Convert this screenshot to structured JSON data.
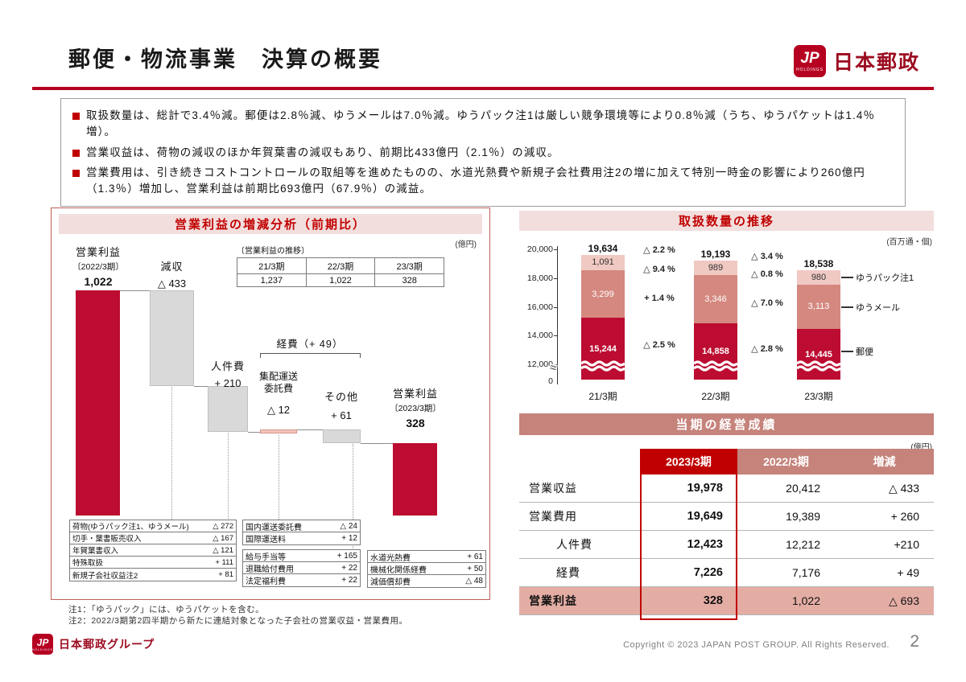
{
  "page": {
    "title": "郵便・物流事業　決算の概要",
    "page_number": "2",
    "copyright": "Copyright © 2023 JAPAN POST GROUP. All Rights Reserved."
  },
  "logo": {
    "jp": "JP",
    "holdings": "HOLDINGS",
    "company": "日本郵政",
    "footer_company": "日本郵政グループ"
  },
  "summary": {
    "bullets": [
      "取扱数量は、総計で3.4％減。郵便は2.8％減、ゆうメールは7.0％減。ゆうパック注1は厳しい競争環境等により0.8％減（うち、ゆうパケットは1.4％増）。",
      "営業収益は、荷物の減収のほか年賀葉書の減収もあり、前期比433億円（2.1％）の減収。",
      "営業費用は、引き続きコストコントロールの取組等を進めたものの、水道光熱費や新規子会社費用注2の増に加えて特別一時金の影響により260億円（1.3％）増加し、営業利益は前期比693億円（67.9％）の減益。"
    ]
  },
  "waterfall": {
    "title": "営業利益の増減分析（前期比）",
    "unit": "(億円)",
    "trend_table": {
      "caption": "〔営業利益の推移〕",
      "headers": [
        "21/3期",
        "22/3期",
        "23/3期"
      ],
      "values": [
        "1,237",
        "1,022",
        "328"
      ]
    },
    "bars": [
      {
        "label": "営業利益",
        "sublabel": "〔2022/3期〕",
        "value": "1,022",
        "start": 0,
        "end": 1022,
        "style": "red"
      },
      {
        "label": "減収",
        "sublabel": "",
        "value": "△ 433",
        "start": 1022,
        "end": 589,
        "style": "gray"
      },
      {
        "label": "人件費",
        "sublabel": "",
        "value": "+ 210",
        "start": 589,
        "end": 379,
        "style": "gray"
      },
      {
        "label": "集配運送委託費",
        "sublabel": "",
        "value": "△ 12",
        "start": 379,
        "end": 391,
        "style": "pink"
      },
      {
        "label": "その他",
        "sublabel": "",
        "value": "+ 61",
        "start": 391,
        "end": 330,
        "style": "gray"
      },
      {
        "label": "営業利益",
        "sublabel": "〔2023/3期〕",
        "value": "328",
        "start": 0,
        "end": 328,
        "style": "red"
      }
    ],
    "expense_bracket_label": "経費（+ 49）",
    "breakdown_tables": {
      "revenue": [
        [
          "荷物(ゆうパック注1、ゆうメール)",
          "△ 272"
        ],
        [
          "切手・葉書販売収入",
          "△ 167"
        ],
        [
          "年賀葉書収入",
          "△ 121"
        ],
        [
          "特殊取扱",
          "+ 111"
        ],
        [
          "新規子会社収益注2",
          "+ 81"
        ]
      ],
      "delivery": [
        [
          "国内運送委託費",
          "△ 24"
        ],
        [
          "国際運送料",
          "+ 12"
        ]
      ],
      "personnel": [
        [
          "給与手当等",
          "+ 165"
        ],
        [
          "退職給付費用",
          "+ 22"
        ],
        [
          "法定福利費",
          "+ 22"
        ]
      ],
      "other": [
        [
          "水道光熱費",
          "+ 61"
        ],
        [
          "機械化関係経費",
          "+ 50"
        ],
        [
          "減価償却費",
          "△ 48"
        ]
      ]
    },
    "notes": [
      "注1：「ゆうパック」には、ゆうパケットを含む。",
      "注2：2022/3期第2四半期から新たに連結対象となった子会社の営業収益・営業費用。"
    ]
  },
  "volume_chart": {
    "title": "取扱数量の推移",
    "unit": "(百万通・個)",
    "y_ticks": [
      "20,000",
      "18,000",
      "16,000",
      "14,000",
      "12,000",
      "0"
    ],
    "bars": [
      {
        "period": "21/3期",
        "total_label": "19,634",
        "total_value": 19634,
        "segments": [
          {
            "name": "ゆうパック",
            "label": "1,091",
            "value": 1091
          },
          {
            "name": "ゆうメール",
            "label": "3,299",
            "value": 3299
          },
          {
            "name": "郵便",
            "label": "15,244",
            "value": 15244
          }
        ]
      },
      {
        "period": "22/3期",
        "total_label": "19,193",
        "total_value": 19193,
        "segments": [
          {
            "name": "ゆうパック",
            "label": "989",
            "value": 989
          },
          {
            "name": "ゆうメール",
            "label": "3,346",
            "value": 3346
          },
          {
            "name": "郵便",
            "label": "14,858",
            "value": 14858
          }
        ]
      },
      {
        "period": "23/3期",
        "total_label": "18,538",
        "total_value": 18538,
        "segments": [
          {
            "name": "ゆうパック",
            "label": "980",
            "value": 980
          },
          {
            "name": "ゆうメール",
            "label": "3,113",
            "value": 3113
          },
          {
            "name": "郵便",
            "label": "14,445",
            "value": 14445
          }
        ]
      }
    ],
    "changes": [
      {
        "items": [
          "△ 2.2 %",
          "△ 9.4 %",
          "+ 1.4 %",
          "△ 2.5 %"
        ]
      },
      {
        "items": [
          "△ 3.4 %",
          "△ 0.8 %",
          "△ 7.0 %",
          "△ 2.8 %"
        ]
      }
    ],
    "legend": [
      "ゆうパック注1",
      "ゆうメール",
      "郵便"
    ]
  },
  "results_table": {
    "title": "当期の経営成績",
    "unit": "(億円)",
    "columns": [
      "",
      "2023/3期",
      "2022/3期",
      "増減"
    ],
    "rows": [
      {
        "label": "営業収益",
        "indent": false,
        "v2023": "19,978",
        "v2022": "20,412",
        "change": "△ 433",
        "highlight": false
      },
      {
        "label": "営業費用",
        "indent": false,
        "v2023": "19,649",
        "v2022": "19,389",
        "change": "+ 260",
        "highlight": false
      },
      {
        "label": "人件費",
        "indent": true,
        "v2023": "12,423",
        "v2022": "12,212",
        "change": "+210",
        "highlight": false
      },
      {
        "label": "経費",
        "indent": true,
        "v2023": "7,226",
        "v2022": "7,176",
        "change": "+ 49",
        "highlight": false
      },
      {
        "label": "営業利益",
        "indent": false,
        "v2023": "328",
        "v2022": "1,022",
        "change": "△ 693",
        "highlight": true
      }
    ]
  },
  "chart_data": [
    {
      "type": "bar",
      "variant": "waterfall",
      "title": "営業利益の増減分析（前期比）",
      "unit": "億円",
      "categories": [
        "営業利益(2022/3期)",
        "減収",
        "人件費",
        "集配運送委託費",
        "その他",
        "営業利益(2023/3期)"
      ],
      "values": [
        1022,
        -433,
        -210,
        12,
        -61,
        328
      ],
      "group_note": "経費（+ 49）= 集配運送委託費 △12 + その他 +61",
      "ylim": [
        0,
        1100
      ]
    },
    {
      "type": "bar",
      "variant": "stacked",
      "title": "取扱数量の推移",
      "unit": "百万通・個",
      "categories": [
        "21/3期",
        "22/3期",
        "23/3期"
      ],
      "series": [
        {
          "name": "ゆうパック",
          "values": [
            1091,
            989,
            980
          ]
        },
        {
          "name": "ゆうメール",
          "values": [
            3299,
            3346,
            3113
          ]
        },
        {
          "name": "郵便",
          "values": [
            15244,
            14858,
            14445
          ]
        }
      ],
      "totals": [
        19634,
        19193,
        18538
      ],
      "yoy_changes": {
        "total": [
          "△2.2%",
          "△3.4%"
        ],
        "ゆうパック": [
          "△9.4%",
          "△0.8%"
        ],
        "ゆうメール": [
          "+1.4%",
          "△7.0%"
        ],
        "郵便": [
          "△2.5%",
          "△2.8%"
        ]
      },
      "ylim": [
        0,
        20000
      ],
      "axis_break_between": [
        0,
        12000
      ],
      "legend_position": "right"
    }
  ]
}
